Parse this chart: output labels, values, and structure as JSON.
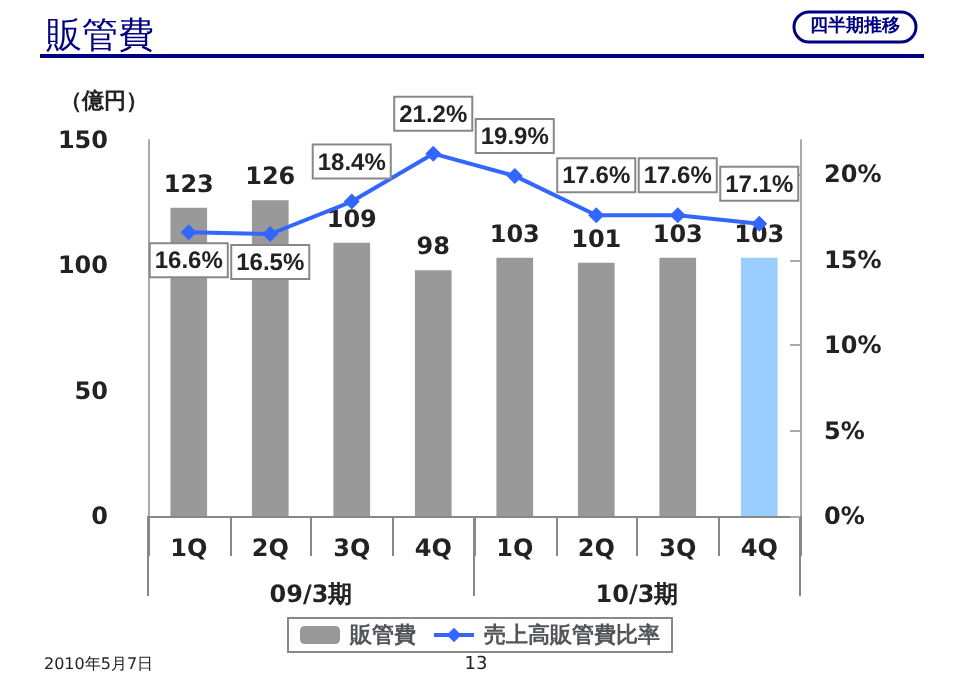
{
  "chart_data": {
    "type": "bar",
    "title": "販管費",
    "subtitle": "四半期推移",
    "ylabel": "（億円）",
    "categories": [
      "1Q",
      "2Q",
      "3Q",
      "4Q",
      "1Q",
      "2Q",
      "3Q",
      "4Q"
    ],
    "series": [
      {
        "name": "販管費",
        "colors": [
          "#999999",
          "#999999",
          "#999999",
          "#999999",
          "#999999",
          "#999999",
          "#999999",
          "#99ccff"
        ],
        "color": "#999999",
        "values": [
          123,
          126,
          109,
          98,
          103,
          101,
          103,
          103
        ],
        "data_labels": true
      },
      {
        "name": "売上高販管費比率",
        "type": "line",
        "axis": "y2",
        "color": "#3366ff",
        "marker": "diamond",
        "values": [
          16.6,
          16.5,
          18.4,
          21.2,
          19.9,
          17.6,
          17.6,
          17.1
        ],
        "value_labels": [
          "16.6%",
          "16.5%",
          "18.4%",
          "21.2%",
          "19.9%",
          "17.6%",
          "17.6%",
          "17.1%"
        ]
      }
    ],
    "ylim": [
      0,
      150
    ],
    "yticks": [
      0,
      50,
      100,
      150
    ],
    "y2lim": [
      0,
      22
    ],
    "y2ticks": [
      {
        "value": 0,
        "label": "0%"
      },
      {
        "value": 5,
        "label": "5%"
      },
      {
        "value": 10,
        "label": "10%"
      },
      {
        "value": 15,
        "label": "15%"
      },
      {
        "value": 20,
        "label": "20%"
      }
    ],
    "annotations": [
      "09/3期",
      "10/3期",
      "2010年5月7日",
      "13"
    ],
    "grid": false,
    "legend": "bottom"
  }
}
